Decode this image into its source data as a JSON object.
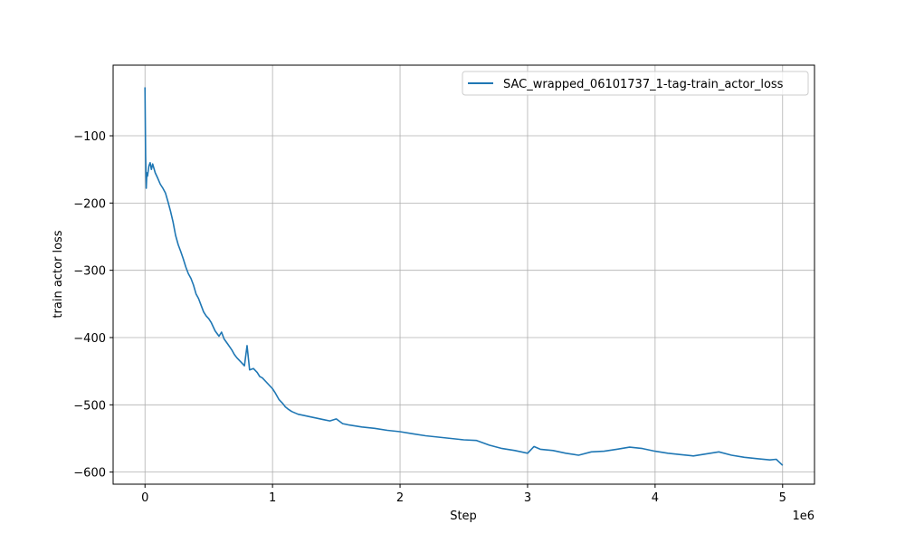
{
  "chart_data": {
    "type": "line",
    "title": "",
    "xlabel": "Step",
    "ylabel": "train actor loss",
    "x_offset_label": "1e6",
    "xlim": [
      -0.25,
      5.25
    ],
    "ylim": [
      -618,
      5
    ],
    "x_ticks": [
      0,
      1,
      2,
      3,
      4,
      5
    ],
    "x_tick_labels": [
      "0",
      "1",
      "2",
      "3",
      "4",
      "5"
    ],
    "y_ticks": [
      -600,
      -500,
      -400,
      -300,
      -200,
      -100
    ],
    "y_tick_labels": [
      "−600",
      "−500",
      "−400",
      "−300",
      "−200",
      "−100"
    ],
    "grid": true,
    "legend_position": "top-right",
    "series_color": "#1f77b4",
    "series": [
      {
        "name": "SAC_wrapped_06101737_1-tag-train_actor_loss",
        "x": [
          0,
          0.005,
          0.01,
          0.015,
          0.02,
          0.03,
          0.04,
          0.05,
          0.06,
          0.08,
          0.1,
          0.12,
          0.14,
          0.16,
          0.18,
          0.2,
          0.22,
          0.24,
          0.26,
          0.28,
          0.3,
          0.32,
          0.34,
          0.36,
          0.38,
          0.4,
          0.42,
          0.44,
          0.46,
          0.48,
          0.5,
          0.52,
          0.55,
          0.58,
          0.6,
          0.62,
          0.65,
          0.68,
          0.7,
          0.72,
          0.75,
          0.78,
          0.8,
          0.82,
          0.85,
          0.88,
          0.9,
          0.92,
          0.95,
          0.98,
          1.0,
          1.02,
          1.05,
          1.08,
          1.1,
          1.12,
          1.15,
          1.2,
          1.25,
          1.3,
          1.35,
          1.4,
          1.45,
          1.5,
          1.55,
          1.6,
          1.7,
          1.8,
          1.9,
          2.0,
          2.1,
          2.2,
          2.3,
          2.4,
          2.5,
          2.6,
          2.7,
          2.8,
          2.9,
          3.0,
          3.05,
          3.1,
          3.2,
          3.3,
          3.4,
          3.5,
          3.6,
          3.7,
          3.8,
          3.9,
          4.0,
          4.1,
          4.2,
          4.3,
          4.4,
          4.5,
          4.6,
          4.7,
          4.8,
          4.9,
          4.95,
          5.0
        ],
        "y": [
          -28,
          -130,
          -178,
          -155,
          -160,
          -145,
          -140,
          -150,
          -142,
          -155,
          -163,
          -172,
          -178,
          -185,
          -198,
          -212,
          -228,
          -248,
          -262,
          -272,
          -283,
          -295,
          -305,
          -312,
          -322,
          -335,
          -342,
          -352,
          -362,
          -368,
          -372,
          -378,
          -390,
          -398,
          -392,
          -402,
          -410,
          -418,
          -425,
          -430,
          -436,
          -442,
          -412,
          -448,
          -446,
          -452,
          -458,
          -460,
          -466,
          -472,
          -476,
          -482,
          -492,
          -498,
          -503,
          -506,
          -510,
          -514,
          -516,
          -518,
          -520,
          -522,
          -524,
          -521,
          -528,
          -530,
          -533,
          -535,
          -538,
          -540,
          -543,
          -546,
          -548,
          -550,
          -552,
          -553,
          -560,
          -565,
          -568,
          -572,
          -562,
          -566,
          -568,
          -572,
          -575,
          -570,
          -569,
          -566,
          -563,
          -565,
          -569,
          -572,
          -574,
          -576,
          -573,
          -570,
          -575,
          -578,
          -580,
          -582,
          -581,
          -590
        ]
      }
    ]
  }
}
